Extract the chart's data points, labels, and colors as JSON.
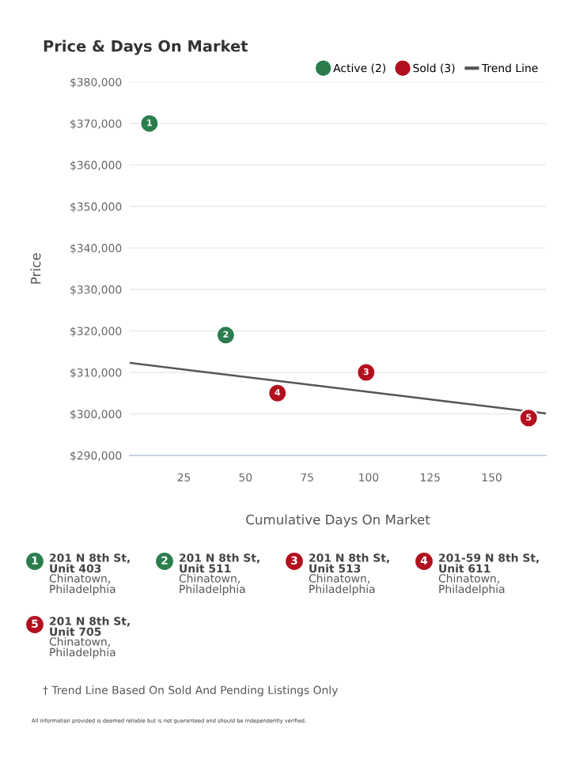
{
  "chart_data": {
    "type": "scatter",
    "title": "Price & Days On Market",
    "xlabel": "Cumulative Days On Market",
    "ylabel": "Price",
    "series": [
      {
        "name": "Active (2)",
        "color": "#2b7d4e",
        "marker": "circle",
        "x": [
          11,
          42
        ],
        "values": [
          370000,
          319000
        ]
      },
      {
        "name": "Sold (3)",
        "color": "#b3101f",
        "marker": "circle",
        "x": [
          99,
          63,
          165
        ],
        "values": [
          310000,
          305000,
          299000
        ]
      },
      {
        "name": "Trend Line",
        "type": "line",
        "color": "#555555",
        "x": [
          3,
          172
        ],
        "values": [
          312300,
          300100
        ]
      }
    ],
    "xlim": [
      3,
      172
    ],
    "xticks": [
      25,
      50,
      75,
      100,
      125,
      150
    ],
    "ylim": [
      290000,
      380000
    ],
    "yticks": [
      {
        "value": 290000,
        "label": "$290,000"
      },
      {
        "value": 300000,
        "label": "$300,000"
      },
      {
        "value": 310000,
        "label": "$310,000"
      },
      {
        "value": 320000,
        "label": "$320,000"
      },
      {
        "value": 330000,
        "label": "$330,000"
      },
      {
        "value": 340000,
        "label": "$340,000"
      },
      {
        "value": 350000,
        "label": "$350,000"
      },
      {
        "value": 360000,
        "label": "$360,000"
      },
      {
        "value": 370000,
        "label": "$370,000"
      },
      {
        "value": 380000,
        "label": "$380,000"
      }
    ],
    "grid": "y",
    "legend": "top right",
    "annotations": [
      {
        "text": "1",
        "x": 11,
        "y": 370000
      },
      {
        "text": "2",
        "x": 42,
        "y": 319000
      },
      {
        "text": "3",
        "x": 99,
        "y": 310000
      },
      {
        "text": "4",
        "x": 63,
        "y": 305000
      },
      {
        "text": "5",
        "x": 165,
        "y": 299000
      },
      "201 N 8th St,\nUnit 403",
      "Chinatown,\nPhiladelphia",
      "201 N 8th St,\nUnit 511",
      "Chinatown,\nPhiladelphia",
      "201 N 8th St,\nUnit 513",
      "Chinatown,\nPhiladelphia",
      "201-59 N 8th St,\nUnit 611",
      "Chinatown,\nPhiladelphia",
      "201 N 8th St,\nUnit 705",
      "Chinatown,\nPhiladelphia",
      "† Trend Line Based On Sold And Pending Listings Only",
      "All information provided is deemed reliable but is not guaranteed and should be independently verified."
    ]
  }
}
